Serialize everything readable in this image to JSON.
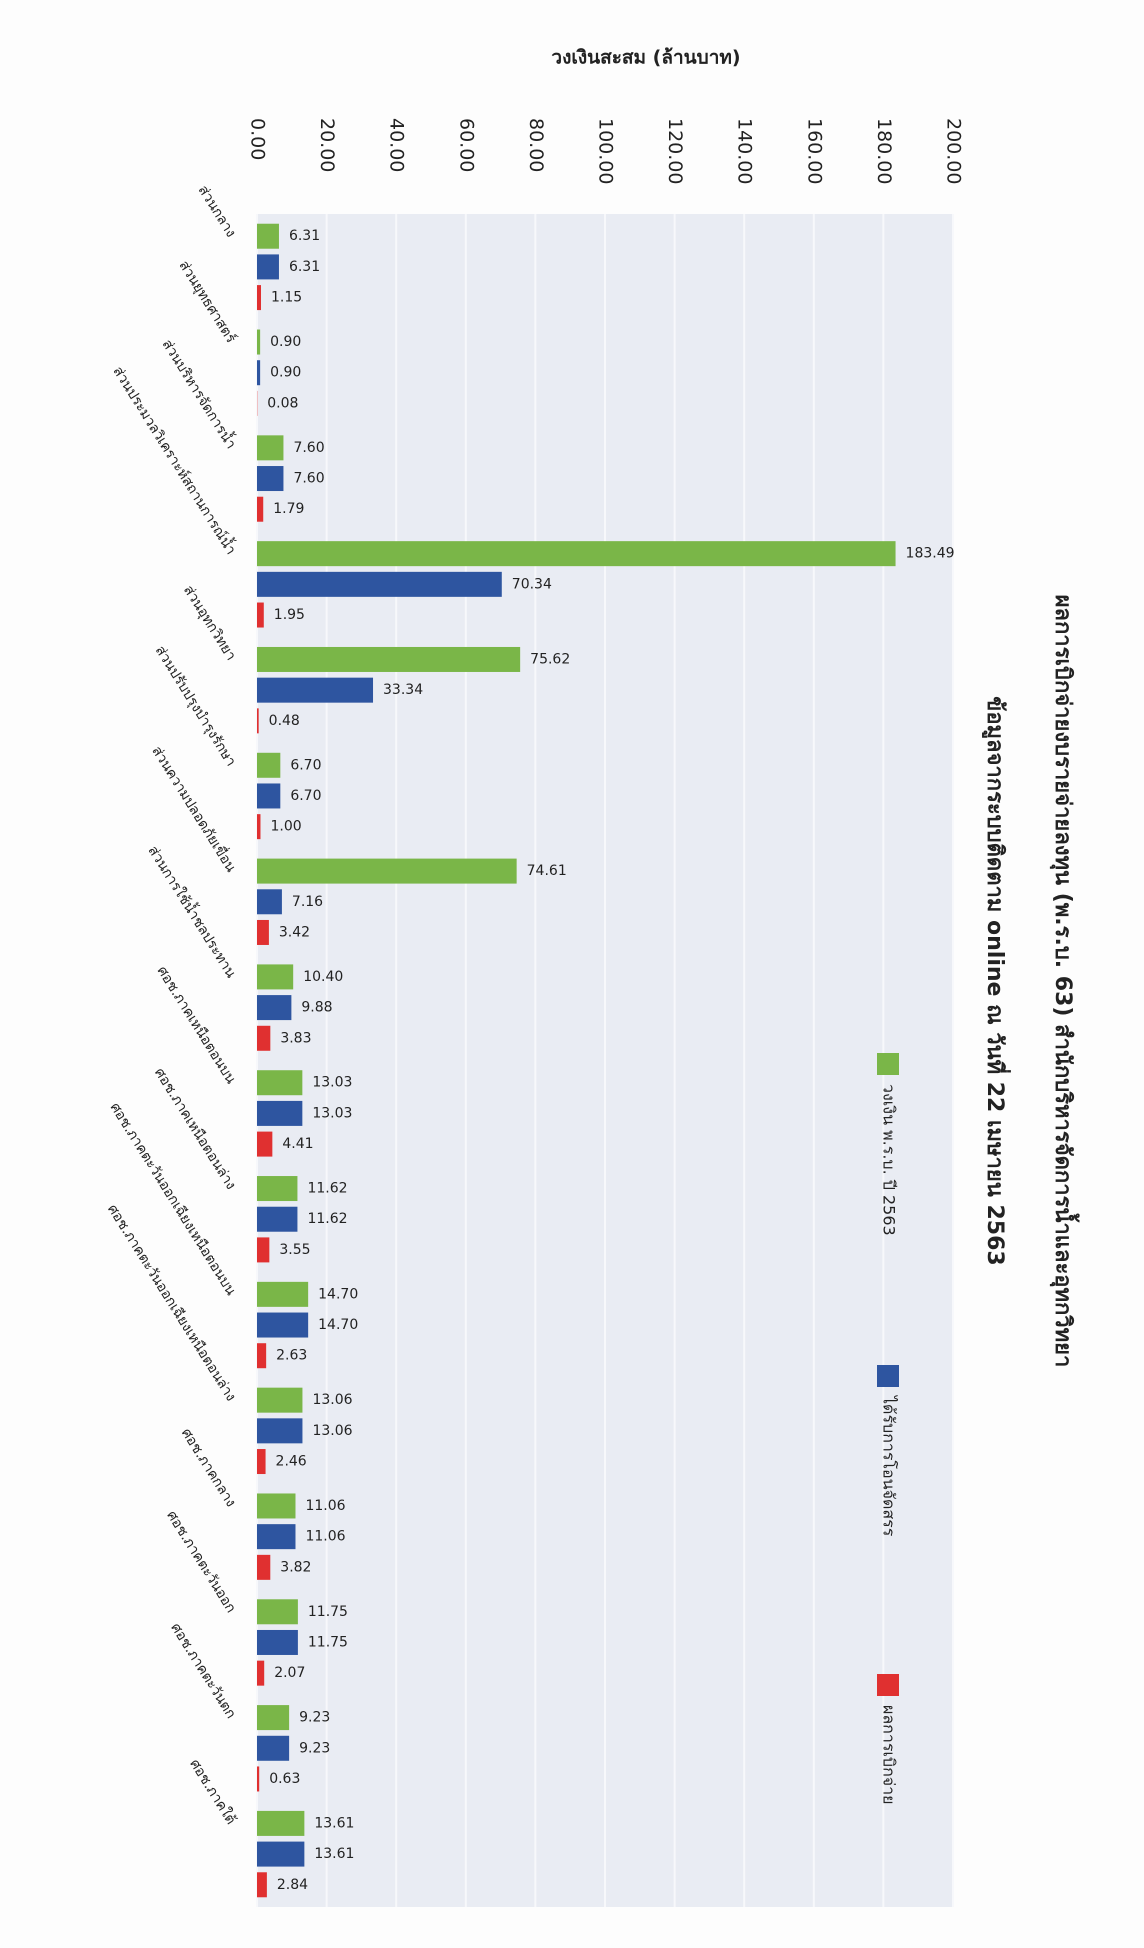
{
  "chart_data": {
    "type": "bar",
    "title": "ผลการเบิกจ่ายงบรายจ่ายลงทุน (พ.ร.บ. 63) สำนักบริหารจัดการน้ำและอุทกวิทยา",
    "subtitle": "ข้อมูลจากระบบติดตาม online ณ วันที่ 22 เมษายน 2563",
    "y_axis_label": "วงเงินสะสม (ล้านบาท)",
    "categories": [
      "ส่วนกลาง",
      "ส่วนยุทธศาสตร์",
      "ส่วนบริหารจัดการน้ำ",
      "ส่วนประมวลวิเคราะห์สถานการณ์น้ำ",
      "ส่วนอุทกวิทยา",
      "ส่วนปรับปรุงบำรุงรักษา",
      "ส่วนความปลอดภัยเขื่อน",
      "ส่วนการใช้น้ำชลประทาน",
      "ศอช.ภาคเหนือตอนบน",
      "ศอช.ภาคเหนือตอนล่าง",
      "ศอช.ภาคตะวันออกเฉียงเหนือตอนบน",
      "ศอช.ภาคตะวันออกเฉียงเหนือตอนล่าง",
      "ศอช.ภาคกลาง",
      "ศอช.ภาคตะวันออก",
      "ศอช.ภาคตะวันตก",
      "ศอช.ภาคใต้"
    ],
    "series": [
      {
        "name": "วงเงิน พ.ร.บ. ปี 2563",
        "color": "#7ab648",
        "values": [
          6.31,
          0.9,
          7.6,
          183.49,
          75.62,
          6.7,
          74.61,
          10.4,
          13.03,
          11.62,
          14.7,
          13.06,
          11.06,
          11.75,
          9.23,
          13.61
        ],
        "value_labels": [
          "6.31",
          "0.90",
          "7.60",
          "183.49",
          "75.62",
          "6.70",
          "74.61",
          "10.40",
          "13.03",
          "11.62",
          "14.70",
          "13.06",
          "11.06",
          "11.75",
          "9.23",
          "13.61"
        ]
      },
      {
        "name": "ได้รับการโอนจัดสรร",
        "color": "#2e55a0",
        "values": [
          6.31,
          0.9,
          7.6,
          70.34,
          33.34,
          6.7,
          7.16,
          9.88,
          13.03,
          11.62,
          14.7,
          13.06,
          11.06,
          11.75,
          9.23,
          13.61
        ],
        "value_labels": [
          "6.31",
          "0.90",
          "7.60",
          "70.34",
          "33.34",
          "6.70",
          "7.16",
          "9.88",
          "13.03",
          "11.62",
          "14.70",
          "13.06",
          "11.06",
          "11.75",
          "9.23",
          "13.61"
        ]
      },
      {
        "name": "ผลการเบิกจ่าย",
        "color": "#e03030",
        "values": [
          1.15,
          0.08,
          1.79,
          1.95,
          0.48,
          1.0,
          3.42,
          3.83,
          4.41,
          3.55,
          2.63,
          2.46,
          3.82,
          2.07,
          0.63,
          2.84
        ],
        "value_labels": [
          "1.15",
          "0.08",
          "1.79",
          "1.95",
          "0.48",
          "1.00",
          "3.42",
          "3.83",
          "4.41",
          "3.55",
          "2.63",
          "2.46",
          "3.82",
          "2.07",
          "0.63",
          "2.84"
        ]
      }
    ],
    "ylim": [
      0,
      200
    ],
    "yticks": [
      {
        "value": 0,
        "label": "0.00"
      },
      {
        "value": 20,
        "label": "20.00"
      },
      {
        "value": 40,
        "label": "40.00"
      },
      {
        "value": 60,
        "label": "60.00"
      },
      {
        "value": 80,
        "label": "80.00"
      },
      {
        "value": 100,
        "label": "100.00"
      },
      {
        "value": 120,
        "label": "120.00"
      },
      {
        "value": 140,
        "label": "140.00"
      },
      {
        "value": 160,
        "label": "160.00"
      },
      {
        "value": 180,
        "label": "180.00"
      },
      {
        "value": 200,
        "label": "200.00"
      }
    ],
    "grid": true
  }
}
